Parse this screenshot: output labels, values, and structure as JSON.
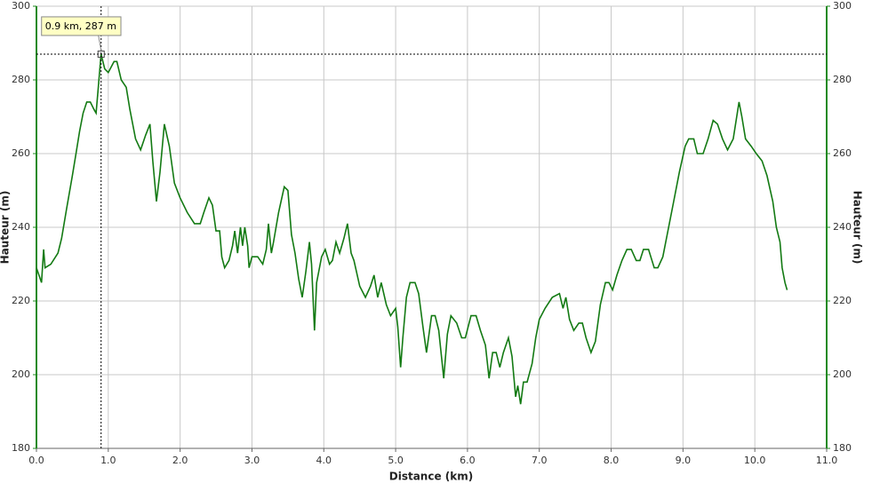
{
  "chart_data": {
    "type": "line",
    "xlabel": "Distance (km)",
    "ylabel": "Hauteur (m)",
    "y2label": "Hauteur (m)",
    "color": "#137a13",
    "axis_color": "#1f8a1f",
    "grid": true,
    "xlim": [
      0,
      11
    ],
    "ylim": [
      180,
      300
    ],
    "y2lim": [
      180,
      300
    ],
    "xticks": [
      {
        "value": 0,
        "label": "0.0"
      },
      {
        "value": 1,
        "label": "1.0"
      },
      {
        "value": 2,
        "label": "2.0"
      },
      {
        "value": 3,
        "label": "3.0"
      },
      {
        "value": 4,
        "label": "4.0"
      },
      {
        "value": 5,
        "label": "5.0"
      },
      {
        "value": 6,
        "label": "6.0"
      },
      {
        "value": 7,
        "label": "7.0"
      },
      {
        "value": 8,
        "label": "8.0"
      },
      {
        "value": 9,
        "label": "9.0"
      },
      {
        "value": 10,
        "label": "10.0"
      },
      {
        "value": 11,
        "label": "11.0"
      }
    ],
    "yticks": [
      180,
      200,
      220,
      240,
      260,
      280,
      300
    ],
    "y2ticks": [
      180,
      200,
      220,
      240,
      260,
      280,
      300
    ],
    "annotation": {
      "text": "0.9 km, 287 m",
      "x": 0.9,
      "y": 287
    },
    "x": [
      0.0,
      0.07,
      0.1,
      0.12,
      0.2,
      0.3,
      0.35,
      0.42,
      0.5,
      0.55,
      0.6,
      0.65,
      0.7,
      0.75,
      0.8,
      0.83,
      0.87,
      0.9,
      0.95,
      1.0,
      1.08,
      1.12,
      1.18,
      1.25,
      1.3,
      1.38,
      1.45,
      1.52,
      1.58,
      1.62,
      1.67,
      1.72,
      1.78,
      1.85,
      1.92,
      2.0,
      2.1,
      2.2,
      2.28,
      2.33,
      2.4,
      2.45,
      2.5,
      2.55,
      2.58,
      2.62,
      2.68,
      2.73,
      2.76,
      2.8,
      2.84,
      2.87,
      2.9,
      2.94,
      2.96,
      3.0,
      3.08,
      3.15,
      3.2,
      3.23,
      3.27,
      3.3,
      3.37,
      3.45,
      3.5,
      3.55,
      3.6,
      3.65,
      3.7,
      3.75,
      3.8,
      3.83,
      3.87,
      3.9,
      3.97,
      4.02,
      4.08,
      4.12,
      4.17,
      4.22,
      4.28,
      4.33,
      4.38,
      4.42,
      4.5,
      4.58,
      4.65,
      4.7,
      4.75,
      4.8,
      4.87,
      4.93,
      5.0,
      5.03,
      5.07,
      5.1,
      5.15,
      5.2,
      5.27,
      5.32,
      5.38,
      5.43,
      5.5,
      5.55,
      5.6,
      5.67,
      5.72,
      5.77,
      5.85,
      5.92,
      5.97,
      6.05,
      6.12,
      6.18,
      6.25,
      6.3,
      6.35,
      6.4,
      6.45,
      6.5,
      6.57,
      6.62,
      6.67,
      6.7,
      6.74,
      6.78,
      6.83,
      6.9,
      6.95,
      7.0,
      7.08,
      7.18,
      7.28,
      7.33,
      7.37,
      7.42,
      7.48,
      7.55,
      7.6,
      7.65,
      7.72,
      7.78,
      7.85,
      7.92,
      7.97,
      8.02,
      8.08,
      8.15,
      8.22,
      8.28,
      8.35,
      8.4,
      8.45,
      8.52,
      8.6,
      8.65,
      8.72,
      8.8,
      8.87,
      8.95,
      9.03,
      9.08,
      9.15,
      9.2,
      9.28,
      9.35,
      9.42,
      9.48,
      9.55,
      9.62,
      9.7,
      9.78,
      9.82,
      9.87,
      9.95,
      10.02,
      10.1,
      10.17,
      10.25,
      10.3,
      10.35,
      10.38,
      10.42,
      10.45
    ],
    "values": [
      229,
      225,
      234,
      229,
      230,
      233,
      237,
      245,
      254,
      260,
      266,
      271,
      274,
      274,
      272,
      271,
      280,
      287,
      283,
      282,
      285,
      285,
      280,
      278,
      272,
      264,
      261,
      265,
      268,
      258,
      247,
      255,
      268,
      262,
      252,
      248,
      244,
      241,
      241,
      244,
      248,
      246,
      239,
      239,
      232,
      229,
      231,
      235,
      239,
      233,
      240,
      235,
      240,
      235,
      229,
      232,
      232,
      230,
      234,
      241,
      233,
      236,
      244,
      251,
      250,
      238,
      233,
      226,
      221,
      228,
      236,
      230,
      212,
      225,
      232,
      234,
      230,
      231,
      236,
      233,
      237,
      241,
      233,
      231,
      224,
      221,
      224,
      227,
      221,
      225,
      219,
      216,
      218,
      213,
      202,
      210,
      221,
      225,
      225,
      222,
      213,
      206,
      216,
      216,
      212,
      199,
      211,
      216,
      214,
      210,
      210,
      216,
      216,
      212,
      208,
      199,
      206,
      206,
      202,
      206,
      210,
      205,
      194,
      197,
      192,
      198,
      198,
      203,
      210,
      215,
      218,
      221,
      222,
      218,
      221,
      215,
      212,
      214,
      214,
      210,
      206,
      209,
      219,
      225,
      225,
      223,
      227,
      231,
      234,
      234,
      231,
      231,
      234,
      234,
      229,
      229,
      232,
      240,
      247,
      255,
      262,
      264,
      264,
      260,
      260,
      264,
      269,
      268,
      264,
      261,
      264,
      274,
      270,
      264,
      262,
      260,
      258,
      254,
      247,
      240,
      236,
      229,
      225,
      223
    ]
  }
}
